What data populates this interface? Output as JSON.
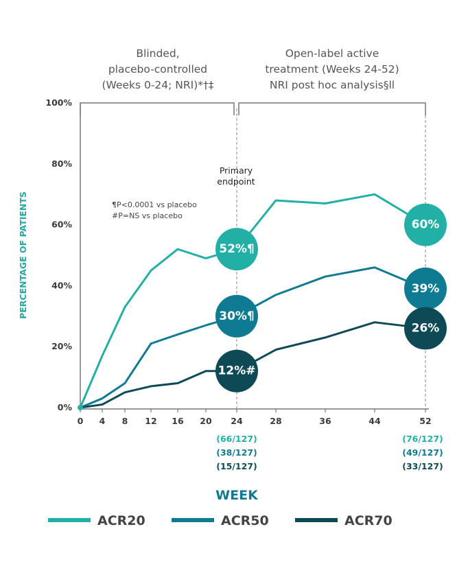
{
  "colors": {
    "acr20": "#22b0a6",
    "acr50": "#0f7b93",
    "acr70": "#0d4a56",
    "axis": "#555555",
    "grey": "#8a8a8a"
  },
  "sections": {
    "blinded": {
      "lines": [
        "Blinded,",
        "placebo-controlled",
        "(Weeks 0-24; NRI)*†‡"
      ]
    },
    "open": {
      "lines": [
        "Open-label active",
        "treatment (Weeks 24-52)",
        "NRI post hoc analysis§ll"
      ]
    }
  },
  "primary_endpoint": {
    "lines": [
      "Primary",
      "endpoint"
    ]
  },
  "footnotes": [
    "¶P<0.0001 vs placebo",
    "#P=NS vs placebo"
  ],
  "counts": {
    "week24": [
      "(66/127)",
      "(38/127)",
      "(15/127)"
    ],
    "week52": [
      "(76/127)",
      "(49/127)",
      "(33/127)"
    ]
  },
  "bubbles": [
    {
      "series": "ACR20",
      "x": 24,
      "y": 52,
      "text": "52%¶"
    },
    {
      "series": "ACR50",
      "x": 24,
      "y": 30,
      "text": "30%¶"
    },
    {
      "series": "ACR70",
      "x": 24,
      "y": 12,
      "text": "12%#"
    },
    {
      "series": "ACR20",
      "x": 52,
      "y": 60,
      "text": "60%"
    },
    {
      "series": "ACR50",
      "x": 52,
      "y": 39,
      "text": "39%"
    },
    {
      "series": "ACR70",
      "x": 52,
      "y": 26,
      "text": "26%"
    }
  ],
  "chart_data": {
    "type": "line",
    "title": "",
    "xlabel": "WEEK",
    "ylabel": "PERCENTAGE OF PATIENTS",
    "xlim": [
      0,
      52
    ],
    "ylim": [
      0,
      100
    ],
    "x_ticks": [
      0,
      4,
      8,
      12,
      16,
      20,
      24,
      28,
      36,
      44,
      52
    ],
    "y_ticks": [
      0,
      20,
      40,
      60,
      80,
      100
    ],
    "y_tick_labels": [
      "0%",
      "20%",
      "40%",
      "60%",
      "80%",
      "100%"
    ],
    "legend_position": "bottom",
    "series": [
      {
        "name": "ACR20",
        "color": "#22b0a6",
        "x": [
          0,
          4,
          8,
          12,
          16,
          20,
          24,
          28,
          36,
          44,
          52
        ],
        "y": [
          0,
          17,
          33,
          45,
          52,
          49,
          52,
          68,
          67,
          70,
          60
        ]
      },
      {
        "name": "ACR50",
        "color": "#0f7b93",
        "x": [
          0,
          4,
          8,
          12,
          16,
          20,
          24,
          28,
          36,
          44,
          52
        ],
        "y": [
          0,
          3,
          8,
          21,
          24,
          27,
          30,
          37,
          43,
          46,
          39
        ]
      },
      {
        "name": "ACR70",
        "color": "#0d4a56",
        "x": [
          0,
          4,
          8,
          12,
          16,
          20,
          24,
          28,
          36,
          44,
          52
        ],
        "y": [
          0,
          1,
          5,
          7,
          8,
          12,
          12,
          19,
          23,
          28,
          26
        ]
      }
    ]
  }
}
